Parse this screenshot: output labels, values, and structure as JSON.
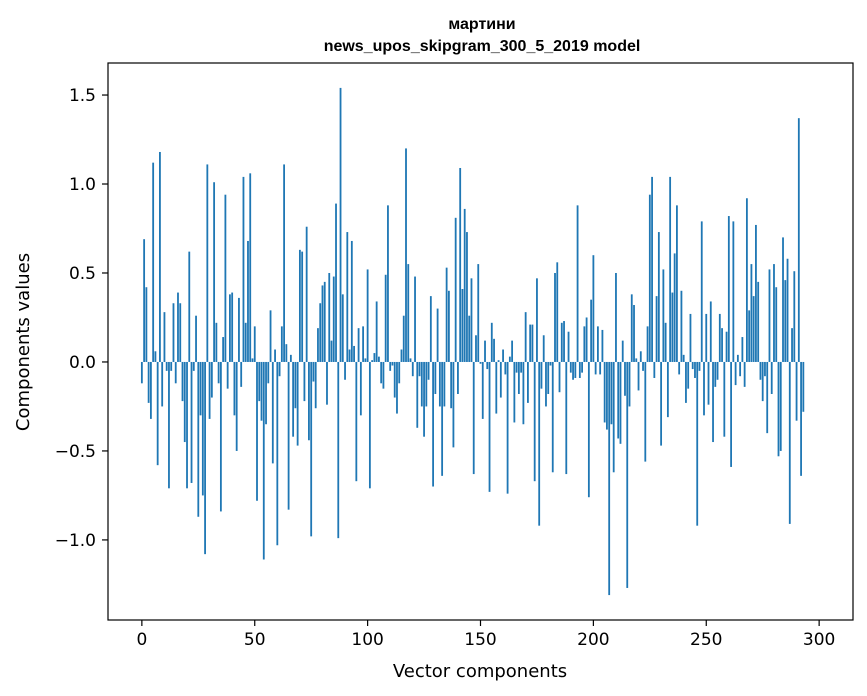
{
  "chart_data": {
    "type": "bar",
    "title": "мартини",
    "subtitle": "news_upos_skipgram_300_5_2019 model",
    "xlabel": "Vector components",
    "ylabel": "Components values",
    "xlim": [
      -15,
      315
    ],
    "ylim": [
      -1.45,
      1.68
    ],
    "xticks": [
      0,
      50,
      100,
      150,
      200,
      250,
      300
    ],
    "yticks": [
      -1.0,
      -0.5,
      0.0,
      0.5,
      1.0,
      1.5
    ],
    "ytick_labels": [
      "−1.0",
      "−0.5",
      "0.0",
      "0.5",
      "1.0",
      "1.5"
    ],
    "bar_color": "#1f77b4",
    "grid": false,
    "legend": "none",
    "values": [
      -0.12,
      0.69,
      0.42,
      -0.23,
      -0.32,
      1.12,
      0.06,
      -0.58,
      1.18,
      -0.25,
      0.28,
      -0.05,
      -0.71,
      -0.05,
      0.33,
      -0.12,
      0.39,
      0.33,
      -0.22,
      -0.45,
      -0.71,
      0.62,
      -0.68,
      -0.05,
      0.26,
      -0.87,
      -0.3,
      -0.75,
      -1.08,
      1.11,
      -0.32,
      -0.2,
      1.01,
      0.22,
      -0.12,
      -0.84,
      0.14,
      0.94,
      -0.15,
      0.38,
      0.39,
      -0.3,
      -0.5,
      0.36,
      -0.14,
      1.04,
      0.22,
      0.68,
      1.06,
      0.02,
      0.2,
      -0.78,
      -0.22,
      -0.33,
      -1.11,
      -0.35,
      -0.12,
      0.29,
      -0.57,
      0.07,
      -1.03,
      -0.08,
      0.2,
      1.11,
      0.1,
      -0.83,
      0.04,
      -0.42,
      -0.26,
      -0.47,
      0.63,
      0.62,
      -0.22,
      0.76,
      -0.44,
      -0.98,
      -0.11,
      -0.26,
      0.19,
      0.33,
      0.43,
      0.45,
      -0.24,
      0.5,
      0.12,
      0.48,
      0.89,
      -0.99,
      1.54,
      0.38,
      -0.1,
      0.73,
      0.07,
      0.68,
      0.09,
      -0.67,
      0.19,
      -0.3,
      0.2,
      0.02,
      0.52,
      -0.71,
      0.01,
      0.05,
      0.34,
      0.03,
      -0.12,
      -0.15,
      0.49,
      0.88,
      -0.05,
      -0.02,
      -0.2,
      -0.29,
      -0.12,
      0.07,
      0.26,
      1.2,
      0.55,
      0.02,
      -0.08,
      0.48,
      -0.37,
      -0.08,
      -0.25,
      -0.42,
      -0.25,
      -0.1,
      0.37,
      -0.7,
      -0.18,
      0.3,
      -0.25,
      -0.64,
      -0.25,
      0.53,
      0.4,
      -0.26,
      -0.48,
      0.81,
      -0.18,
      1.09,
      0.41,
      0.86,
      0.73,
      0.26,
      0.47,
      -0.63,
      0.15,
      0.55,
      -0.01,
      -0.32,
      0.12,
      -0.04,
      -0.73,
      0.22,
      0.13,
      -0.29,
      0.01,
      -0.2,
      0.07,
      -0.07,
      -0.74,
      0.03,
      0.12,
      -0.34,
      -0.06,
      -0.18,
      -0.06,
      -0.35,
      0.28,
      -0.23,
      0.21,
      0.21,
      -0.67,
      0.47,
      -0.92,
      -0.15,
      0.15,
      -0.25,
      -0.18,
      -0.02,
      -0.62,
      0.5,
      0.56,
      -0.17,
      0.22,
      0.23,
      -0.63,
      0.17,
      -0.06,
      -0.1,
      -0.09,
      0.88,
      -0.09,
      -0.06,
      0.2,
      0.25,
      -0.76,
      0.35,
      0.6,
      -0.07,
      0.2,
      -0.07,
      0.18,
      -0.34,
      -0.38,
      -1.31,
      -0.35,
      -0.62,
      0.5,
      -0.43,
      -0.46,
      0.12,
      -0.19,
      -1.27,
      -0.25,
      0.38,
      0.32,
      0.02,
      -0.16,
      0.06,
      -0.05,
      -0.56,
      0.2,
      0.94,
      1.04,
      -0.09,
      0.37,
      0.73,
      -0.47,
      0.52,
      0.22,
      -0.31,
      1.04,
      0.39,
      0.61,
      0.88,
      -0.07,
      0.4,
      0.04,
      -0.23,
      -0.15,
      0.27,
      -0.04,
      -0.09,
      -0.92,
      -0.05,
      0.79,
      -0.3,
      0.27,
      -0.24,
      0.34,
      -0.45,
      -0.14,
      -0.1,
      0.27,
      0.19,
      -0.42,
      0.17,
      0.82,
      -0.59,
      0.79,
      -0.13,
      0.04,
      -0.08,
      0.14,
      -0.14,
      0.92,
      0.29,
      0.55,
      0.37,
      0.77,
      0.45,
      -0.1,
      -0.22,
      -0.08,
      -0.4,
      0.52,
      -0.18,
      0.55,
      0.42,
      -0.53,
      -0.5,
      0.7,
      0.46,
      0.58,
      -0.91,
      0.19,
      0.51,
      -0.33,
      1.37,
      -0.64,
      -0.28
    ]
  }
}
